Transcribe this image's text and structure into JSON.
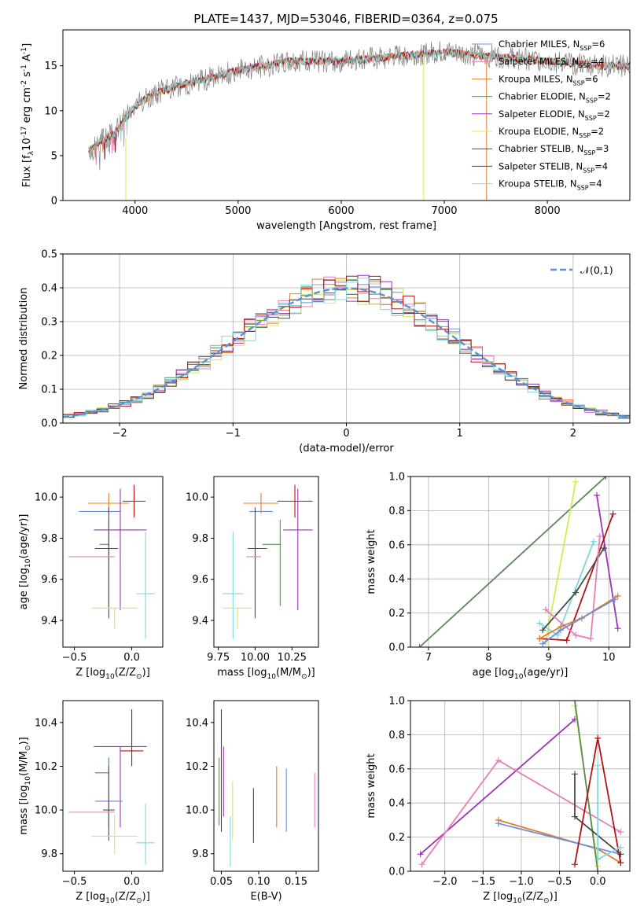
{
  "figure_title": "PLATE=1437, MJD=53046, FIBERID=0364, z=0.075",
  "colors": {
    "chabrier_miles": "#6A8FE0",
    "salpeter_miles": "#E67FB7",
    "kroupa_miles": "#E07D2B",
    "chabrier_elodie": "#5A8A5A",
    "salpeter_elodie": "#9A36B5",
    "kroupa_elodie": "#D6EA55",
    "chabrier_stelib": "#4A4A4A",
    "salpeter_stelib": "#B01515",
    "kroupa_stelib": "#7ED8DC",
    "spectrum": "#808080",
    "normal_curve": "#5B8FD6",
    "grid": "#b0b0b0"
  },
  "chart_data": [
    {
      "type": "line",
      "xlabel": "wavelength [Angstrom, rest frame]",
      "ylabel": "Flux [f$_\\lambda$10$^{-17}$ erg cm$^{-2}$ s$^{-1}$ A$^{-1}$]",
      "xlim": [
        3300,
        8800
      ],
      "ylim": [
        0,
        19
      ],
      "xticks": [
        4000,
        5000,
        6000,
        7000,
        8000
      ],
      "yticks": [
        0,
        5,
        10,
        15
      ],
      "grid": false,
      "legend": "top-right",
      "x": [
        3550,
        3650,
        3800,
        4000,
        4200,
        4500,
        5000,
        5500,
        6000,
        6500,
        7000,
        7500,
        8000,
        8500,
        8800
      ],
      "series": [
        {
          "name": "Chabrier MILES, N$_{SSP}$=6",
          "color_key": "chabrier_miles"
        },
        {
          "name": "Salpeter MILES, N$_{SSP}$=4",
          "color_key": "salpeter_miles"
        },
        {
          "name": "Kroupa MILES, N$_{SSP}$=6",
          "color_key": "kroupa_miles"
        },
        {
          "name": "Chabrier ELODIE, N$_{SSP}$=2",
          "color_key": "chabrier_elodie"
        },
        {
          "name": "Salpeter ELODIE, N$_{SSP}$=2",
          "color_key": "salpeter_elodie"
        },
        {
          "name": "Kroupa ELODIE, N$_{SSP}$=2",
          "color_key": "kroupa_elodie"
        },
        {
          "name": "Chabrier STELIB, N$_{SSP}$=3",
          "color_key": "chabrier_stelib"
        },
        {
          "name": "Salpeter STELIB, N$_{SSP}$=4",
          "color_key": "salpeter_stelib"
        },
        {
          "name": "Kroupa STELIB, N$_{SSP}$=4",
          "color_key": "kroupa_stelib"
        }
      ],
      "flux_values": [
        5.5,
        6.5,
        7.5,
        10.5,
        12.0,
        13.0,
        14.5,
        15.5,
        15.5,
        16.0,
        16.5,
        16.0,
        15.5,
        15.0,
        15.0
      ]
    },
    {
      "type": "step",
      "xlabel": "(data-model)/error",
      "ylabel": "Normed distribution",
      "xlim": [
        -2.5,
        2.5
      ],
      "ylim": [
        0,
        0.5
      ],
      "xticks": [
        -2,
        -1,
        0,
        1,
        2
      ],
      "yticks": [
        0.0,
        0.1,
        0.2,
        0.3,
        0.4,
        0.5
      ],
      "grid": true,
      "legend": "top-right",
      "legend_label": "$\\mathcal{N}(0,1)$",
      "bin_width": 0.1
    },
    {
      "type": "errorbar",
      "xlabel": "Z [log$_{10}$(Z/Z$_\\odot$)]",
      "ylabel": "age  [log$_{10}$(age/yr)]",
      "xlim": [
        -0.6,
        0.27
      ],
      "ylim": [
        9.27,
        10.1
      ],
      "xticks": [
        -0.5,
        0.0
      ],
      "yticks": [
        9.4,
        9.6,
        9.8,
        10.0
      ],
      "points": [
        {
          "c": "chabrier_miles",
          "x": -0.28,
          "y": 9.93,
          "xl": 0.18,
          "xh": 0.18,
          "yl": 0.0,
          "yh": 0.0
        },
        {
          "c": "kroupa_miles",
          "x": -0.2,
          "y": 9.97,
          "xl": 0.18,
          "xh": 0.18,
          "yl": 0.05,
          "yh": 0.05
        },
        {
          "c": "salpeter_stelib",
          "x": 0.02,
          "y": 9.98,
          "xl": 0.1,
          "xh": 0.1,
          "yl": 0.08,
          "yh": 0.08
        },
        {
          "c": "salpeter_elodie",
          "x": -0.1,
          "y": 9.84,
          "xl": 0.23,
          "xh": 0.23,
          "yl": 0.39,
          "yh": 0.2
        },
        {
          "c": "chabrier_elodie",
          "x": -0.2,
          "y": 9.77,
          "xl": 0.08,
          "xh": 0.0,
          "yl": 0.3,
          "yh": 0.12
        },
        {
          "c": "chabrier_stelib",
          "x": -0.2,
          "y": 9.75,
          "xl": 0.12,
          "xh": 0.08,
          "yl": 0.34,
          "yh": 0.2
        },
        {
          "c": "salpeter_miles",
          "x": -0.35,
          "y": 9.71,
          "xl": 0.2,
          "xh": 0.2,
          "yl": 0.0,
          "yh": 0.0
        },
        {
          "c": "kroupa_stelib",
          "x": 0.12,
          "y": 9.53,
          "xl": 0.08,
          "xh": 0.08,
          "yl": 0.22,
          "yh": 0.3
        },
        {
          "c": "kroupa_elodie",
          "x": -0.15,
          "y": 9.46,
          "xl": 0.2,
          "xh": 0.2,
          "yl": 0.1,
          "yh": 0.0
        }
      ]
    },
    {
      "type": "errorbar",
      "xlabel": "mass [log$_{10}$(M/M$_\\odot$)]",
      "ylabel": "",
      "xlim": [
        9.72,
        10.43
      ],
      "ylim": [
        9.27,
        10.1
      ],
      "xticks": [
        9.75,
        10.0,
        10.25
      ],
      "yticks": [
        9.4,
        9.6,
        9.8,
        10.0
      ],
      "points": [
        {
          "c": "chabrier_miles",
          "x": 10.04,
          "y": 9.93,
          "xl": 0.08,
          "xh": 0.08,
          "yl": 0.0,
          "yh": 0.0
        },
        {
          "c": "kroupa_miles",
          "x": 10.04,
          "y": 9.97,
          "xl": 0.12,
          "xh": 0.12,
          "yl": 0.05,
          "yh": 0.05
        },
        {
          "c": "salpeter_stelib",
          "x": 10.27,
          "y": 9.98,
          "xl": 0.12,
          "xh": 0.12,
          "yl": 0.08,
          "yh": 0.08
        },
        {
          "c": "salpeter_elodie",
          "x": 10.29,
          "y": 9.84,
          "xl": 0.1,
          "xh": 0.1,
          "yl": 0.39,
          "yh": 0.2
        },
        {
          "c": "chabrier_elodie",
          "x": 10.17,
          "y": 9.77,
          "xl": 0.12,
          "xh": 0.0,
          "yl": 0.3,
          "yh": 0.12
        },
        {
          "c": "chabrier_stelib",
          "x": 10.0,
          "y": 9.75,
          "xl": 0.05,
          "xh": 0.08,
          "yl": 0.34,
          "yh": 0.2
        },
        {
          "c": "salpeter_miles",
          "x": 9.99,
          "y": 9.71,
          "xl": 0.05,
          "xh": 0.05,
          "yl": 0.0,
          "yh": 0.0
        },
        {
          "c": "kroupa_stelib",
          "x": 9.85,
          "y": 9.53,
          "xl": 0.07,
          "xh": 0.07,
          "yl": 0.22,
          "yh": 0.3
        },
        {
          "c": "kroupa_elodie",
          "x": 9.88,
          "y": 9.46,
          "xl": 0.1,
          "xh": 0.1,
          "yl": 0.1,
          "yh": 0.0
        }
      ]
    },
    {
      "type": "line",
      "xlabel": "age  [log$_{10}$(age/yr)]",
      "ylabel": "mass weight",
      "xlim": [
        6.7,
        10.35
      ],
      "ylim": [
        0.0,
        1.0
      ],
      "xticks": [
        7,
        8,
        9,
        10
      ],
      "yticks": [
        0.0,
        0.2,
        0.4,
        0.6,
        0.8,
        1.0
      ],
      "grid": true,
      "series": [
        {
          "c": "chabrier_elodie",
          "x": [
            6.85,
            9.95
          ],
          "y": [
            0.0,
            1.0
          ]
        },
        {
          "c": "kroupa_elodie",
          "x": [
            8.95,
            9.45
          ],
          "y": [
            0.03,
            0.97
          ]
        },
        {
          "c": "salpeter_elodie",
          "x": [
            9.8,
            10.15
          ],
          "y": [
            0.89,
            0.11
          ]
        },
        {
          "c": "salpeter_stelib",
          "x": [
            8.85,
            9.3,
            10.07
          ],
          "y": [
            0.05,
            0.04,
            0.78
          ]
        },
        {
          "c": "kroupa_stelib",
          "x": [
            8.85,
            9.15,
            9.75
          ],
          "y": [
            0.14,
            0.07,
            0.62
          ]
        },
        {
          "c": "chabrier_stelib",
          "x": [
            8.9,
            9.45,
            9.92
          ],
          "y": [
            0.1,
            0.32,
            0.58
          ]
        },
        {
          "c": "salpeter_miles",
          "x": [
            8.95,
            9.45,
            9.7,
            9.85
          ],
          "y": [
            0.22,
            0.07,
            0.05,
            0.65
          ]
        },
        {
          "c": "kroupa_miles",
          "x": [
            8.85,
            9.2,
            9.55,
            10.15
          ],
          "y": [
            0.05,
            0.12,
            0.17,
            0.3
          ]
        },
        {
          "c": "chabrier_miles",
          "x": [
            8.9,
            9.2,
            10.1
          ],
          "y": [
            0.02,
            0.1,
            0.28
          ]
        }
      ]
    },
    {
      "type": "errorbar",
      "xlabel": "Z [log$_{10}$(Z/Z$_\\odot$)]",
      "ylabel": "mass [log$_{10}$(M/M$_\\odot$)]",
      "xlim": [
        -0.6,
        0.27
      ],
      "ylim": [
        9.72,
        10.5
      ],
      "xticks": [
        -0.5,
        0.0
      ],
      "yticks": [
        9.8,
        10.0,
        10.2,
        10.4
      ],
      "points": [
        {
          "c": "salpeter_stelib",
          "x": 0.0,
          "y": 10.27,
          "xl": 0.1,
          "xh": 0.1,
          "yl": 0.07,
          "yh": 0.19
        },
        {
          "c": "salpeter_elodie",
          "x": -0.1,
          "y": 10.29,
          "xl": 0.23,
          "xh": 0.23,
          "yl": 0.37,
          "yh": 0.0
        },
        {
          "c": "chabrier_elodie",
          "x": -0.2,
          "y": 10.17,
          "xl": 0.12,
          "xh": 0.0,
          "yl": 0.25,
          "yh": 0.07
        },
        {
          "c": "kroupa_miles",
          "x": -0.2,
          "y": 10.04,
          "xl": 0.12,
          "xh": 0.1,
          "yl": 0.12,
          "yh": 0.14
        },
        {
          "c": "chabrier_miles",
          "x": -0.2,
          "y": 10.04,
          "xl": 0.12,
          "xh": 0.12,
          "yl": 0.0,
          "yh": 0.0
        },
        {
          "c": "chabrier_stelib",
          "x": -0.2,
          "y": 10.0,
          "xl": 0.05,
          "xh": 0.05,
          "yl": 0.14,
          "yh": 0.2
        },
        {
          "c": "salpeter_miles",
          "x": -0.35,
          "y": 9.99,
          "xl": 0.2,
          "xh": 0.2,
          "yl": 0.0,
          "yh": 0.0
        },
        {
          "c": "kroupa_elodie",
          "x": -0.15,
          "y": 9.88,
          "xl": 0.2,
          "xh": 0.2,
          "yl": 0.08,
          "yh": 0.1
        },
        {
          "c": "kroupa_stelib",
          "x": 0.12,
          "y": 9.85,
          "xl": 0.08,
          "xh": 0.08,
          "yl": 0.1,
          "yh": 0.18
        }
      ]
    },
    {
      "type": "errorbar",
      "xlabel": "E(B-V)",
      "ylabel": "",
      "xlim": [
        0.04,
        0.18
      ],
      "ylim": [
        9.72,
        10.5
      ],
      "xticks": [
        0.05,
        0.1,
        0.15
      ],
      "yticks": [
        9.8,
        10.0,
        10.2,
        10.4
      ],
      "points": [
        {
          "c": "salpeter_stelib",
          "x": 0.05,
          "y": 10.27,
          "yl": 0.37,
          "yh": 0.19
        },
        {
          "c": "chabrier_elodie",
          "x": 0.047,
          "y": 10.1,
          "yl": 0.17,
          "yh": 0.14
        },
        {
          "c": "salpeter_elodie",
          "x": 0.053,
          "y": 10.12,
          "yl": 0.15,
          "yh": 0.17
        },
        {
          "c": "kroupa_elodie",
          "x": 0.065,
          "y": 9.98,
          "yl": 0.12,
          "yh": 0.15
        },
        {
          "c": "kroupa_stelib",
          "x": 0.062,
          "y": 9.82,
          "yl": 0.08,
          "yh": 0.15
        },
        {
          "c": "chabrier_stelib",
          "x": 0.093,
          "y": 9.97,
          "yl": 0.12,
          "yh": 0.13
        },
        {
          "c": "kroupa_miles",
          "x": 0.124,
          "y": 10.06,
          "yl": 0.14,
          "yh": 0.14
        },
        {
          "c": "chabrier_miles",
          "x": 0.137,
          "y": 10.04,
          "yl": 0.14,
          "yh": 0.15
        },
        {
          "c": "salpeter_miles",
          "x": 0.175,
          "y": 10.03,
          "yl": 0.11,
          "yh": 0.14
        }
      ]
    },
    {
      "type": "line",
      "xlabel": "Z [log$_{10}$(Z/Z$_\\odot$)]",
      "ylabel": "mass weight",
      "xlim": [
        -2.45,
        0.42
      ],
      "ylim": [
        0.0,
        1.0
      ],
      "xticks": [
        -2.0,
        -1.5,
        -1.0,
        -0.5,
        0.0
      ],
      "yticks": [
        0.0,
        0.2,
        0.4,
        0.6,
        0.8,
        1.0
      ],
      "grid": true,
      "series": [
        {
          "c": "salpeter_elodie",
          "x": [
            -2.32,
            -0.3
          ],
          "y": [
            0.1,
            0.89
          ]
        },
        {
          "c": "salpeter_miles",
          "x": [
            -2.3,
            -1.3,
            0.3
          ],
          "y": [
            0.04,
            0.65,
            0.23
          ]
        },
        {
          "c": "kroupa_miles",
          "x": [
            -1.3,
            0.0,
            0.3
          ],
          "y": [
            0.3,
            0.13,
            0.05
          ]
        },
        {
          "c": "chabrier_miles",
          "x": [
            -1.3,
            0.3
          ],
          "y": [
            0.28,
            0.1
          ]
        },
        {
          "c": "kroupa_elodie",
          "x": [
            -0.3,
            0.0
          ],
          "y": [
            0.97,
            0.03
          ]
        },
        {
          "c": "chabrier_elodie",
          "x": [
            -0.3,
            0.0
          ],
          "y": [
            1.0,
            0.0
          ]
        },
        {
          "c": "chabrier_stelib",
          "x": [
            -0.3,
            -0.3,
            0.3
          ],
          "y": [
            0.57,
            0.32,
            0.1
          ]
        },
        {
          "c": "salpeter_stelib",
          "x": [
            -0.3,
            0.0,
            0.3
          ],
          "y": [
            0.04,
            0.78,
            0.05
          ]
        },
        {
          "c": "kroupa_stelib",
          "x": [
            0.0,
            0.0,
            0.3
          ],
          "y": [
            0.62,
            0.07,
            0.14
          ]
        }
      ]
    }
  ]
}
